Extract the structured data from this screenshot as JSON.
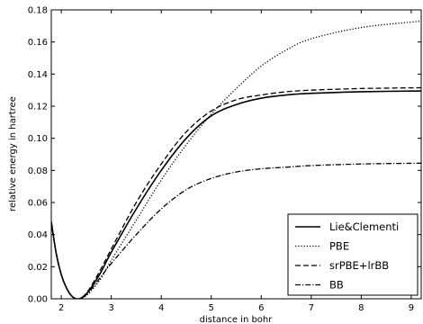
{
  "chart_data": {
    "type": "line",
    "xlabel": "distance in bohr",
    "ylabel": "relative energy in hartree",
    "xlim": [
      1.8,
      9.2
    ],
    "ylim": [
      0,
      0.18
    ],
    "xticks": [
      2,
      3,
      4,
      5,
      6,
      7,
      8,
      9
    ],
    "yticks": [
      0.0,
      0.02,
      0.04,
      0.06,
      0.08,
      0.1,
      0.12,
      0.14,
      0.16,
      0.18
    ],
    "ytick_labels": [
      "0.00",
      "0.02",
      "0.04",
      "0.06",
      "0.08",
      "0.10",
      "0.12",
      "0.14",
      "0.16",
      "0.18"
    ],
    "xtick_labels": [
      "2",
      "3",
      "4",
      "5",
      "6",
      "7",
      "8",
      "9"
    ],
    "grid": false,
    "legend_position": "bottom-right",
    "series": [
      {
        "name": "Lie&Clementi",
        "style": "solid",
        "color": "#000000",
        "x": [
          1.8,
          1.9,
          2.0,
          2.1,
          2.2,
          2.3,
          2.4,
          2.5,
          2.6,
          2.8,
          3.0,
          3.5,
          4.0,
          4.5,
          5.0,
          5.5,
          6.0,
          6.5,
          7.0,
          8.0,
          9.2
        ],
        "y": [
          0.048,
          0.028,
          0.015,
          0.007,
          0.002,
          0.0,
          0.0005,
          0.003,
          0.007,
          0.017,
          0.029,
          0.056,
          0.08,
          0.1,
          0.114,
          0.121,
          0.125,
          0.127,
          0.128,
          0.129,
          0.1295
        ]
      },
      {
        "name": "PBE",
        "style": "dotted",
        "color": "#000000",
        "x": [
          1.8,
          1.9,
          2.0,
          2.1,
          2.2,
          2.3,
          2.4,
          2.5,
          2.6,
          2.8,
          3.0,
          3.5,
          4.0,
          4.5,
          5.0,
          5.5,
          6.0,
          6.5,
          7.0,
          8.0,
          9.2
        ],
        "y": [
          0.048,
          0.028,
          0.015,
          0.007,
          0.002,
          0.0,
          0.0003,
          0.002,
          0.005,
          0.013,
          0.024,
          0.049,
          0.074,
          0.096,
          0.115,
          0.131,
          0.145,
          0.155,
          0.162,
          0.169,
          0.173
        ]
      },
      {
        "name": "srPBE+lrBB",
        "style": "dashed",
        "color": "#000000",
        "x": [
          1.8,
          1.9,
          2.0,
          2.1,
          2.2,
          2.3,
          2.4,
          2.5,
          2.6,
          2.8,
          3.0,
          3.5,
          4.0,
          4.5,
          5.0,
          5.5,
          6.0,
          6.5,
          7.0,
          8.0,
          9.2
        ],
        "y": [
          0.048,
          0.028,
          0.015,
          0.007,
          0.002,
          0.0,
          0.0006,
          0.0035,
          0.008,
          0.019,
          0.031,
          0.06,
          0.084,
          0.104,
          0.117,
          0.124,
          0.127,
          0.129,
          0.13,
          0.131,
          0.1315
        ]
      },
      {
        "name": "BB",
        "style": "dashdot",
        "color": "#000000",
        "x": [
          1.8,
          1.9,
          2.0,
          2.1,
          2.2,
          2.3,
          2.4,
          2.5,
          2.6,
          2.8,
          3.0,
          3.5,
          4.0,
          4.5,
          5.0,
          5.5,
          6.0,
          6.5,
          7.0,
          8.0,
          9.2
        ],
        "y": [
          0.048,
          0.028,
          0.015,
          0.007,
          0.002,
          0.0,
          0.0004,
          0.0025,
          0.006,
          0.014,
          0.022,
          0.04,
          0.056,
          0.068,
          0.075,
          0.079,
          0.081,
          0.082,
          0.083,
          0.084,
          0.0845
        ]
      }
    ]
  }
}
